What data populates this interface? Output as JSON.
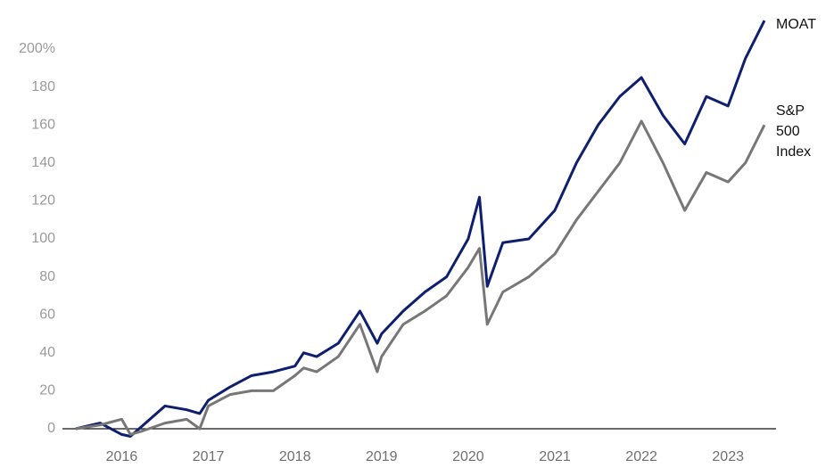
{
  "chart_data": {
    "type": "line",
    "x": [
      2015.47,
      2015.75,
      2016.0,
      2016.1,
      2016.25,
      2016.5,
      2016.75,
      2016.9,
      2017.0,
      2017.25,
      2017.5,
      2017.75,
      2018.0,
      2018.1,
      2018.25,
      2018.5,
      2018.75,
      2018.95,
      2019.0,
      2019.25,
      2019.5,
      2019.75,
      2020.0,
      2020.13,
      2020.22,
      2020.4,
      2020.7,
      2021.0,
      2021.25,
      2021.5,
      2021.75,
      2022.0,
      2022.25,
      2022.5,
      2022.75,
      2023.0,
      2023.2,
      2023.42
    ],
    "series": [
      {
        "name": "MOAT",
        "color": "#0d1f6e",
        "values": [
          0,
          3,
          -3,
          -4,
          2,
          12,
          10,
          8,
          15,
          22,
          28,
          30,
          33,
          40,
          38,
          45,
          62,
          45,
          50,
          62,
          72,
          80,
          100,
          122,
          75,
          98,
          100,
          115,
          140,
          160,
          175,
          185,
          165,
          150,
          175,
          170,
          195,
          215
        ]
      },
      {
        "name": "S&P 500 Index",
        "color": "#777777",
        "values": [
          0,
          2,
          5,
          -3,
          -1,
          3,
          5,
          0,
          12,
          18,
          20,
          20,
          28,
          32,
          30,
          38,
          55,
          30,
          38,
          55,
          62,
          70,
          85,
          95,
          55,
          72,
          80,
          92,
          110,
          125,
          140,
          162,
          140,
          115,
          135,
          130,
          140,
          160
        ]
      }
    ],
    "xlim": [
      2015.47,
      2023.42
    ],
    "xticks": [
      2016,
      2017,
      2018,
      2019,
      2020,
      2021,
      2022,
      2023
    ],
    "ylim": [
      -10,
      220
    ],
    "yticks": [
      0,
      20,
      40,
      60,
      80,
      100,
      120,
      140,
      160,
      180,
      {
        "value": 200,
        "label": "200%"
      }
    ],
    "grid": false
  }
}
